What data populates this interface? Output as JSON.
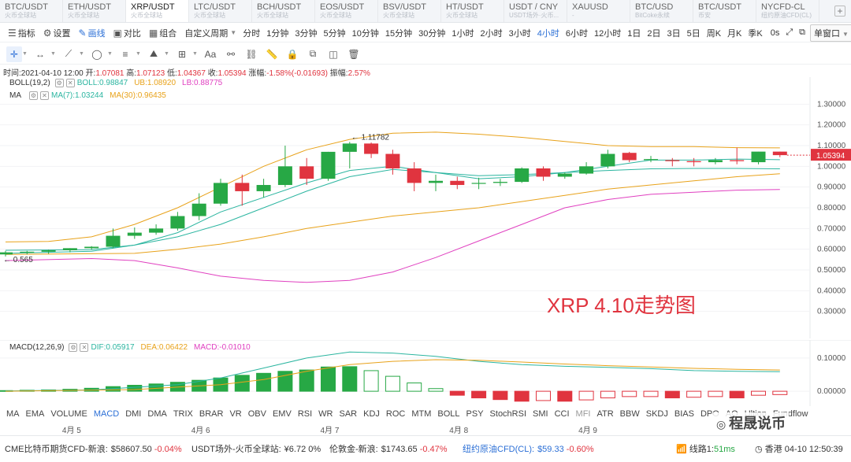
{
  "tabs": [
    {
      "label": "BTC/USDT",
      "sub": "火币全球站"
    },
    {
      "label": "ETH/USDT",
      "sub": "火币全球站"
    },
    {
      "label": "XRP/USDT",
      "sub": "火币全球站"
    },
    {
      "label": "LTC/USDT",
      "sub": "火币全球站"
    },
    {
      "label": "BCH/USDT",
      "sub": "火币全球站"
    },
    {
      "label": "EOS/USDT",
      "sub": "火币全球站"
    },
    {
      "label": "BSV/USDT",
      "sub": "火币全球站"
    },
    {
      "label": "HT/USDT",
      "sub": "火币全球站"
    },
    {
      "label": "USDT / CNY",
      "sub": "USDT场外·火币..."
    },
    {
      "label": "XAUUSD",
      "sub": "-"
    },
    {
      "label": "BTC/USD",
      "sub": "BitCoke永续"
    },
    {
      "label": "BTC/USDT",
      "sub": "币安"
    },
    {
      "label": "NYCFD-CL",
      "sub": "纽约原油CFD(CL)"
    }
  ],
  "active_tab": "XRP/USDT",
  "add_tab_label": "+",
  "toolbar": {
    "indicator": "指标",
    "settings": "设置",
    "draw": "画线",
    "compare": "对比",
    "combo": "组合",
    "custom_period": "自定义周期",
    "periods": [
      "分时",
      "1分钟",
      "3分钟",
      "5分钟",
      "10分钟",
      "15分钟",
      "30分钟",
      "1小时",
      "2小时",
      "3小时",
      "4小时",
      "6小时",
      "12小时",
      "1日",
      "2日",
      "3日",
      "5日",
      "周K",
      "月K",
      "季K"
    ],
    "active_period": "4小时",
    "zero_s": "0s",
    "window_mode": "单窗口"
  },
  "info": {
    "time_label": "时间:",
    "time": "2021-04-10 12:00",
    "open_label": "开:",
    "open": "1.07081",
    "high_label": "高:",
    "high": "1.07123",
    "low_label": "低:",
    "low": "1.04367",
    "close_label": "收:",
    "close": "1.05394",
    "chg_label": "涨幅:",
    "chg": "-1.58%(-0.01693)",
    "amp_label": "振幅:",
    "amp": "2.57%"
  },
  "boll_legend": {
    "name": "BOLL(19,2)",
    "boll": "BOLL:0.98847",
    "ub": "UB:1.08920",
    "lb": "LB:0.88775"
  },
  "ma_legend": {
    "name": "MA",
    "ma7": "MA(7):1.03244",
    "ma30": "MA(30):0.96435"
  },
  "macd_legend": {
    "name": "MACD(12,26,9)",
    "dif": "DIF:0.05917",
    "dea": "DEA:0.06422",
    "macd": "MACD:-0.01010"
  },
  "colors": {
    "up": "#27a845",
    "down": "#e0343f",
    "boll": "#2bb5a0",
    "ub": "#e8a21a",
    "lb": "#e040c0",
    "ma7": "#2bb5a0",
    "ma30": "#e8a21a",
    "accent": "#2b6fd6"
  },
  "chart_data": [
    {
      "type": "candlestick",
      "title": "XRP 4.10走势图",
      "ylim": [
        0.2,
        1.4
      ],
      "y_ticks": [
        "1.30000",
        "1.20000",
        "1.10000",
        "1.00000",
        "0.90000",
        "0.80000",
        "0.70000",
        "0.60000",
        "0.50000",
        "0.40000",
        "0.30000"
      ],
      "current_price": "1.05394",
      "max_marker": "1.11782",
      "min_marker": "0.565",
      "x_dates": [
        "4月 5",
        "4月 6",
        "4月 7",
        "4月 8",
        "4月 9"
      ],
      "candles": [
        {
          "o": 0.575,
          "h": 0.592,
          "l": 0.565,
          "c": 0.585
        },
        {
          "o": 0.585,
          "h": 0.592,
          "l": 0.575,
          "c": 0.588
        },
        {
          "o": 0.588,
          "h": 0.598,
          "l": 0.578,
          "c": 0.595
        },
        {
          "o": 0.595,
          "h": 0.605,
          "l": 0.585,
          "c": 0.605
        },
        {
          "o": 0.605,
          "h": 0.615,
          "l": 0.598,
          "c": 0.612
        },
        {
          "o": 0.612,
          "h": 0.7,
          "l": 0.605,
          "c": 0.665
        },
        {
          "o": 0.665,
          "h": 0.705,
          "l": 0.65,
          "c": 0.68
        },
        {
          "o": 0.68,
          "h": 0.72,
          "l": 0.67,
          "c": 0.7
        },
        {
          "o": 0.7,
          "h": 0.78,
          "l": 0.69,
          "c": 0.76
        },
        {
          "o": 0.76,
          "h": 0.87,
          "l": 0.74,
          "c": 0.82
        },
        {
          "o": 0.82,
          "h": 0.94,
          "l": 0.81,
          "c": 0.92
        },
        {
          "o": 0.92,
          "h": 0.96,
          "l": 0.81,
          "c": 0.88
        },
        {
          "o": 0.88,
          "h": 0.94,
          "l": 0.85,
          "c": 0.91
        },
        {
          "o": 0.91,
          "h": 1.1,
          "l": 0.9,
          "c": 1.0
        },
        {
          "o": 1.0,
          "h": 1.04,
          "l": 0.91,
          "c": 0.94
        },
        {
          "o": 0.94,
          "h": 1.07,
          "l": 0.93,
          "c": 1.07
        },
        {
          "o": 1.07,
          "h": 1.118,
          "l": 0.99,
          "c": 1.11
        },
        {
          "o": 1.11,
          "h": 1.115,
          "l": 1.04,
          "c": 1.06
        },
        {
          "o": 1.06,
          "h": 1.08,
          "l": 0.96,
          "c": 0.99
        },
        {
          "o": 0.99,
          "h": 1.02,
          "l": 0.88,
          "c": 0.92
        },
        {
          "o": 0.92,
          "h": 0.96,
          "l": 0.88,
          "c": 0.93
        },
        {
          "o": 0.93,
          "h": 0.95,
          "l": 0.89,
          "c": 0.91
        },
        {
          "o": 0.92,
          "h": 0.945,
          "l": 0.89,
          "c": 0.92
        },
        {
          "o": 0.92,
          "h": 0.94,
          "l": 0.905,
          "c": 0.925
        },
        {
          "o": 0.925,
          "h": 0.995,
          "l": 0.92,
          "c": 0.99
        },
        {
          "o": 0.99,
          "h": 1.0,
          "l": 0.93,
          "c": 0.95
        },
        {
          "o": 0.95,
          "h": 0.97,
          "l": 0.94,
          "c": 0.965
        },
        {
          "o": 0.965,
          "h": 1.02,
          "l": 0.96,
          "c": 1.0
        },
        {
          "o": 1.0,
          "h": 1.08,
          "l": 0.99,
          "c": 1.06
        },
        {
          "o": 1.065,
          "h": 1.07,
          "l": 1.02,
          "c": 1.03
        },
        {
          "o": 1.03,
          "h": 1.05,
          "l": 1.02,
          "c": 1.035
        },
        {
          "o": 1.03,
          "h": 1.04,
          "l": 1.0,
          "c": 1.025
        },
        {
          "o": 1.025,
          "h": 1.04,
          "l": 1.0,
          "c": 1.02
        },
        {
          "o": 1.02,
          "h": 1.04,
          "l": 1.01,
          "c": 1.03
        },
        {
          "o": 1.03,
          "h": 1.09,
          "l": 1.01,
          "c": 1.025
        },
        {
          "o": 1.02,
          "h": 1.07,
          "l": 1.01,
          "c": 1.071
        },
        {
          "o": 1.071,
          "h": 1.071,
          "l": 1.044,
          "c": 1.054
        }
      ],
      "series": [
        {
          "name": "UB",
          "color": "#e8a21a",
          "values": [
            [
              0,
              0.635
            ],
            [
              2,
              0.638
            ],
            [
              4,
              0.66
            ],
            [
              6,
              0.72
            ],
            [
              8,
              0.8
            ],
            [
              10,
              0.9
            ],
            [
              12,
              1.0
            ],
            [
              14,
              1.08
            ],
            [
              16,
              1.13
            ],
            [
              18,
              1.16
            ],
            [
              20,
              1.165
            ],
            [
              22,
              1.155
            ],
            [
              24,
              1.14
            ],
            [
              26,
              1.12
            ],
            [
              28,
              1.1
            ],
            [
              30,
              1.095
            ],
            [
              32,
              1.095
            ],
            [
              34,
              1.09
            ],
            [
              36,
              1.089
            ]
          ]
        },
        {
          "name": "BOLL",
          "color": "#2bb5a0",
          "values": [
            [
              0,
              0.595
            ],
            [
              4,
              0.598
            ],
            [
              6,
              0.62
            ],
            [
              8,
              0.66
            ],
            [
              10,
              0.72
            ],
            [
              12,
              0.8
            ],
            [
              14,
              0.88
            ],
            [
              16,
              0.95
            ],
            [
              18,
              0.985
            ],
            [
              20,
              0.97
            ],
            [
              22,
              0.955
            ],
            [
              24,
              0.96
            ],
            [
              26,
              0.97
            ],
            [
              28,
              0.98
            ],
            [
              30,
              0.988
            ],
            [
              32,
              0.99
            ],
            [
              34,
              0.99
            ],
            [
              36,
              0.988
            ]
          ]
        },
        {
          "name": "LB",
          "color": "#e040c0",
          "values": [
            [
              0,
              0.545
            ],
            [
              4,
              0.555
            ],
            [
              6,
              0.545
            ],
            [
              8,
              0.51
            ],
            [
              10,
              0.47
            ],
            [
              12,
              0.45
            ],
            [
              14,
              0.44
            ],
            [
              16,
              0.45
            ],
            [
              18,
              0.49
            ],
            [
              20,
              0.56
            ],
            [
              22,
              0.64
            ],
            [
              24,
              0.72
            ],
            [
              26,
              0.8
            ],
            [
              28,
              0.84
            ],
            [
              30,
              0.865
            ],
            [
              32,
              0.875
            ],
            [
              34,
              0.885
            ],
            [
              36,
              0.888
            ]
          ]
        },
        {
          "name": "MA(7)",
          "color": "#2bb5a0",
          "values": [
            [
              0,
              0.58
            ],
            [
              4,
              0.59
            ],
            [
              6,
              0.62
            ],
            [
              8,
              0.68
            ],
            [
              10,
              0.78
            ],
            [
              12,
              0.85
            ],
            [
              14,
              0.92
            ],
            [
              16,
              0.98
            ],
            [
              18,
              1.0
            ],
            [
              20,
              0.97
            ],
            [
              22,
              0.94
            ],
            [
              24,
              0.95
            ],
            [
              26,
              0.97
            ],
            [
              28,
              1.0
            ],
            [
              30,
              1.03
            ],
            [
              32,
              1.03
            ],
            [
              34,
              1.035
            ],
            [
              36,
              1.032
            ]
          ]
        },
        {
          "name": "MA(30)",
          "color": "#e8a21a",
          "values": [
            [
              0,
              0.575
            ],
            [
              6,
              0.58
            ],
            [
              8,
              0.6
            ],
            [
              10,
              0.625
            ],
            [
              12,
              0.66
            ],
            [
              14,
              0.7
            ],
            [
              16,
              0.73
            ],
            [
              18,
              0.76
            ],
            [
              20,
              0.78
            ],
            [
              22,
              0.8
            ],
            [
              24,
              0.83
            ],
            [
              26,
              0.86
            ],
            [
              28,
              0.89
            ],
            [
              30,
              0.91
            ],
            [
              32,
              0.93
            ],
            [
              34,
              0.95
            ],
            [
              36,
              0.964
            ]
          ]
        }
      ]
    },
    {
      "type": "bar",
      "title": "MACD(12,26,9)",
      "ylim": [
        -0.04,
        0.14
      ],
      "y_ticks": [
        "0.10000",
        "0.00000"
      ],
      "macd": [
        0.002,
        0.003,
        0.004,
        0.006,
        0.009,
        0.014,
        0.018,
        0.022,
        0.027,
        0.033,
        0.04,
        0.048,
        0.054,
        0.06,
        0.064,
        0.073,
        0.074,
        0.062,
        0.045,
        0.025,
        0.008,
        -0.012,
        -0.02,
        -0.025,
        -0.03,
        -0.028,
        -0.03,
        -0.026,
        -0.02,
        -0.016,
        -0.016,
        -0.02,
        -0.018,
        -0.016,
        -0.02,
        -0.012,
        -0.01
      ],
      "dif": [
        [
          0,
          0.001
        ],
        [
          4,
          0.004
        ],
        [
          8,
          0.02
        ],
        [
          10,
          0.04
        ],
        [
          12,
          0.07
        ],
        [
          14,
          0.1
        ],
        [
          16,
          0.118
        ],
        [
          18,
          0.115
        ],
        [
          20,
          0.105
        ],
        [
          22,
          0.09
        ],
        [
          24,
          0.08
        ],
        [
          26,
          0.075
        ],
        [
          28,
          0.072
        ],
        [
          30,
          0.068
        ],
        [
          32,
          0.062
        ],
        [
          34,
          0.06
        ],
        [
          36,
          0.059
        ]
      ],
      "dea": [
        [
          0,
          0.0
        ],
        [
          6,
          0.005
        ],
        [
          10,
          0.02
        ],
        [
          12,
          0.035
        ],
        [
          14,
          0.06
        ],
        [
          16,
          0.08
        ],
        [
          18,
          0.09
        ],
        [
          20,
          0.095
        ],
        [
          22,
          0.093
        ],
        [
          24,
          0.088
        ],
        [
          26,
          0.082
        ],
        [
          28,
          0.077
        ],
        [
          30,
          0.073
        ],
        [
          32,
          0.069
        ],
        [
          34,
          0.066
        ],
        [
          36,
          0.064
        ]
      ]
    }
  ],
  "indicators": [
    "MA",
    "EMA",
    "VOLUME",
    "MACD",
    "DMI",
    "DMA",
    "TRIX",
    "BRAR",
    "VR",
    "OBV",
    "EMV",
    "RSI",
    "WR",
    "SAR",
    "KDJ",
    "ROC",
    "MTM",
    "BOLL",
    "PSY",
    "StochRSI",
    "SMI",
    "CCI",
    "MFI",
    "ATR",
    "BBW",
    "SKDJ",
    "BIAS",
    "DPO",
    "AO",
    "Ultion",
    "Fundflow"
  ],
  "active_indicator": "MACD",
  "watermark": "程晟说币",
  "ticker": [
    {
      "label": "CME比特币期货CFD-新浪:",
      "value": "$58607.50",
      "chg": "-0.04%"
    },
    {
      "label": "USDT场外-火币全球站:",
      "value": "¥6.72",
      "chg": "0%"
    },
    {
      "label": "伦敦金-新浪:",
      "value": "$1743.65",
      "chg": "-0.47%"
    },
    {
      "label": "纽约原油CFD(CL):",
      "value": "$59.33",
      "chg": "-0.60%"
    }
  ],
  "status": {
    "route_label": "线路1:",
    "route_ms": "51ms",
    "region": "香港",
    "clock": "04-10 12:50:39"
  }
}
